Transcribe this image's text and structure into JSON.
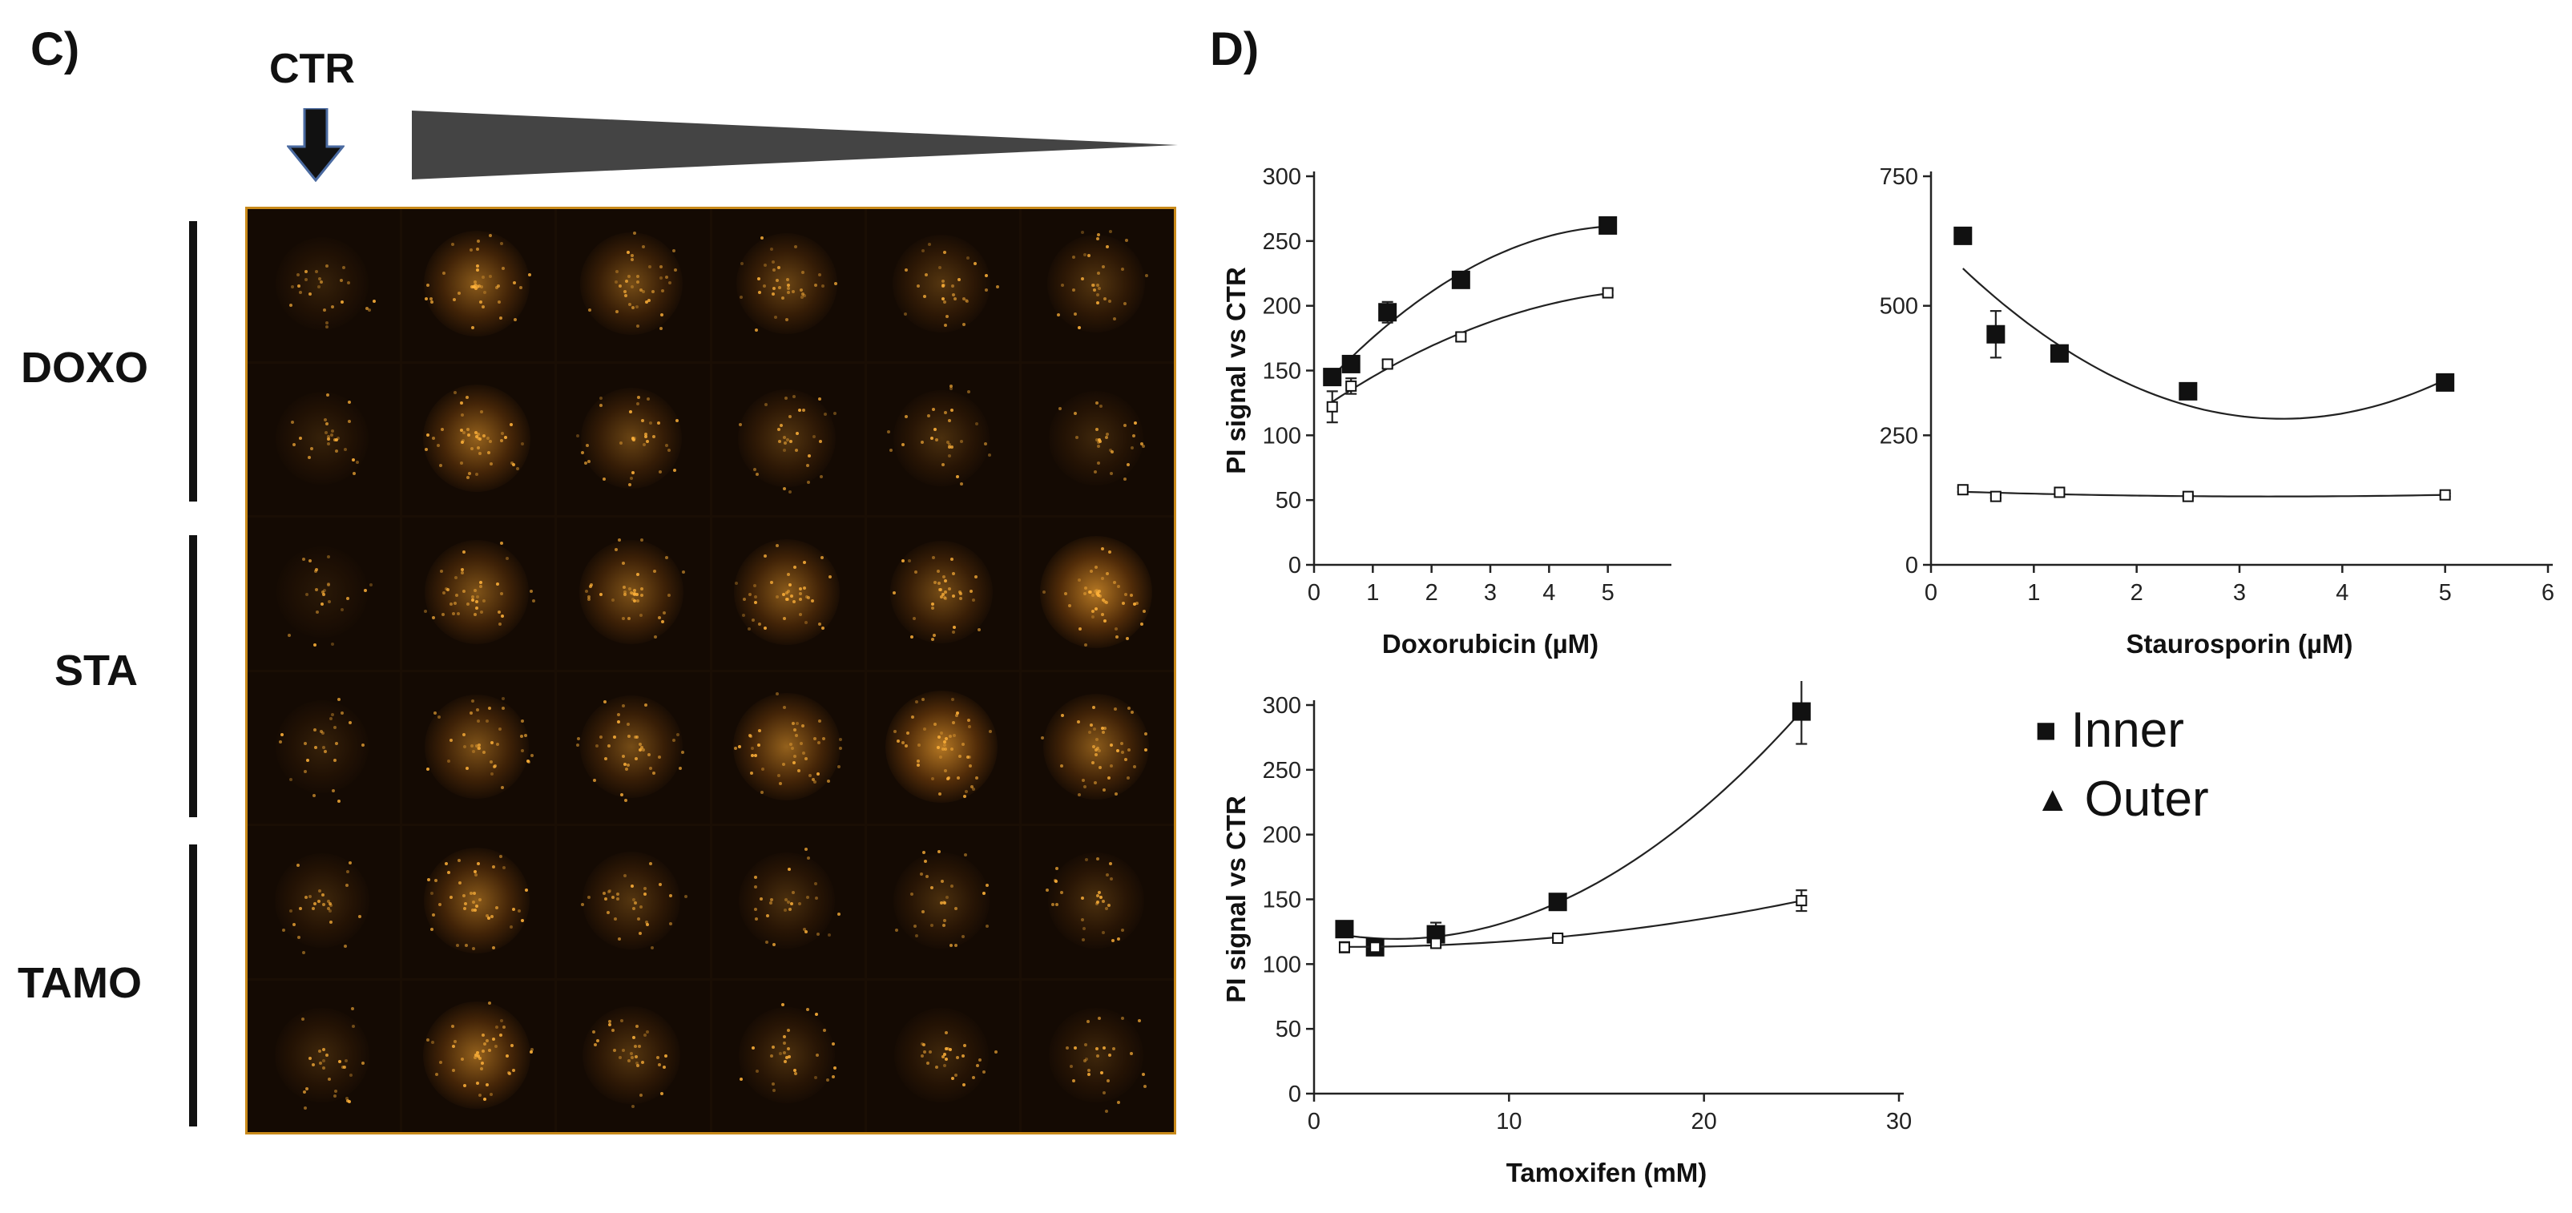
{
  "panel_c_label": "C)",
  "panel_d_label": "D)",
  "ctr_label": "CTR",
  "row_labels": [
    "DOXO",
    "STA",
    "TAMO"
  ],
  "colors": {
    "signal": "#ffa52a",
    "frame": "#c98a1a",
    "marker": "#111111"
  },
  "legend": {
    "inner_marker": "■",
    "inner": "Inner",
    "outer_marker": "▲",
    "outer": "Outer"
  },
  "image_grid": {
    "intensity": [
      [
        0.15,
        0.55,
        0.45,
        0.4,
        0.3,
        0.3
      ],
      [
        0.15,
        0.6,
        0.4,
        0.3,
        0.25,
        0.2
      ],
      [
        0.1,
        0.5,
        0.5,
        0.55,
        0.45,
        0.75
      ],
      [
        0.15,
        0.5,
        0.45,
        0.6,
        0.75,
        0.55
      ],
      [
        0.2,
        0.55,
        0.3,
        0.25,
        0.25,
        0.25
      ],
      [
        0.2,
        0.6,
        0.3,
        0.25,
        0.2,
        0.2
      ]
    ]
  },
  "chart_data": [
    {
      "type": "scatter",
      "title": "",
      "xlabel": "Doxorubicin (µM)",
      "ylabel": "PI signal vs CTR",
      "xlim": [
        0,
        6
      ],
      "ylim": [
        0,
        300
      ],
      "xticks": [
        0,
        1,
        2,
        3,
        4,
        5
      ],
      "yticks": [
        0,
        50,
        100,
        150,
        200,
        250,
        300
      ],
      "series": [
        {
          "name": "Inner",
          "marker": "filled-square",
          "x": [
            0.31,
            0.63,
            1.25,
            2.5,
            5
          ],
          "y": [
            145,
            155,
            195,
            220,
            262
          ],
          "err": [
            6,
            5,
            8,
            4,
            3
          ]
        },
        {
          "name": "Outer",
          "marker": "open-square",
          "x": [
            0.31,
            0.63,
            1.25,
            2.5,
            5
          ],
          "y": [
            122,
            138,
            155,
            176,
            210
          ],
          "err": [
            12,
            6,
            3,
            3,
            2
          ]
        }
      ]
    },
    {
      "type": "scatter",
      "title": "",
      "xlabel": "Staurosporin (µM)",
      "ylabel": "",
      "xlim": [
        0,
        6
      ],
      "ylim": [
        0,
        750
      ],
      "xticks": [
        0,
        1,
        2,
        3,
        4,
        5,
        6
      ],
      "yticks": [
        0,
        250,
        500,
        750
      ],
      "series": [
        {
          "name": "Inner",
          "marker": "filled-square",
          "x": [
            0.31,
            0.63,
            1.25,
            2.5,
            5
          ],
          "y": [
            635,
            445,
            408,
            335,
            352
          ],
          "err": [
            10,
            45,
            10,
            5,
            5
          ]
        },
        {
          "name": "Outer",
          "marker": "open-square",
          "x": [
            0.31,
            0.63,
            1.25,
            2.5,
            5
          ],
          "y": [
            145,
            132,
            140,
            132,
            135
          ],
          "err": [
            4,
            3,
            3,
            3,
            3
          ]
        }
      ]
    },
    {
      "type": "scatter",
      "title": "",
      "xlabel": "Tamoxifen (mM)",
      "ylabel": "PI signal vs CTR",
      "xlim": [
        0,
        30
      ],
      "ylim": [
        0,
        300
      ],
      "xticks": [
        0,
        10,
        20,
        30
      ],
      "yticks": [
        0,
        50,
        100,
        150,
        200,
        250,
        300
      ],
      "series": [
        {
          "name": "Inner",
          "marker": "filled-square",
          "x": [
            1.56,
            3.13,
            6.25,
            12.5,
            25
          ],
          "y": [
            127,
            113,
            123,
            148,
            295
          ],
          "err": [
            4,
            3,
            9,
            4,
            25
          ]
        },
        {
          "name": "Outer",
          "marker": "open-square",
          "x": [
            1.56,
            3.13,
            6.25,
            12.5,
            25
          ],
          "y": [
            113,
            113,
            116,
            120,
            149
          ],
          "err": [
            4,
            3,
            3,
            2,
            8
          ]
        }
      ]
    }
  ]
}
